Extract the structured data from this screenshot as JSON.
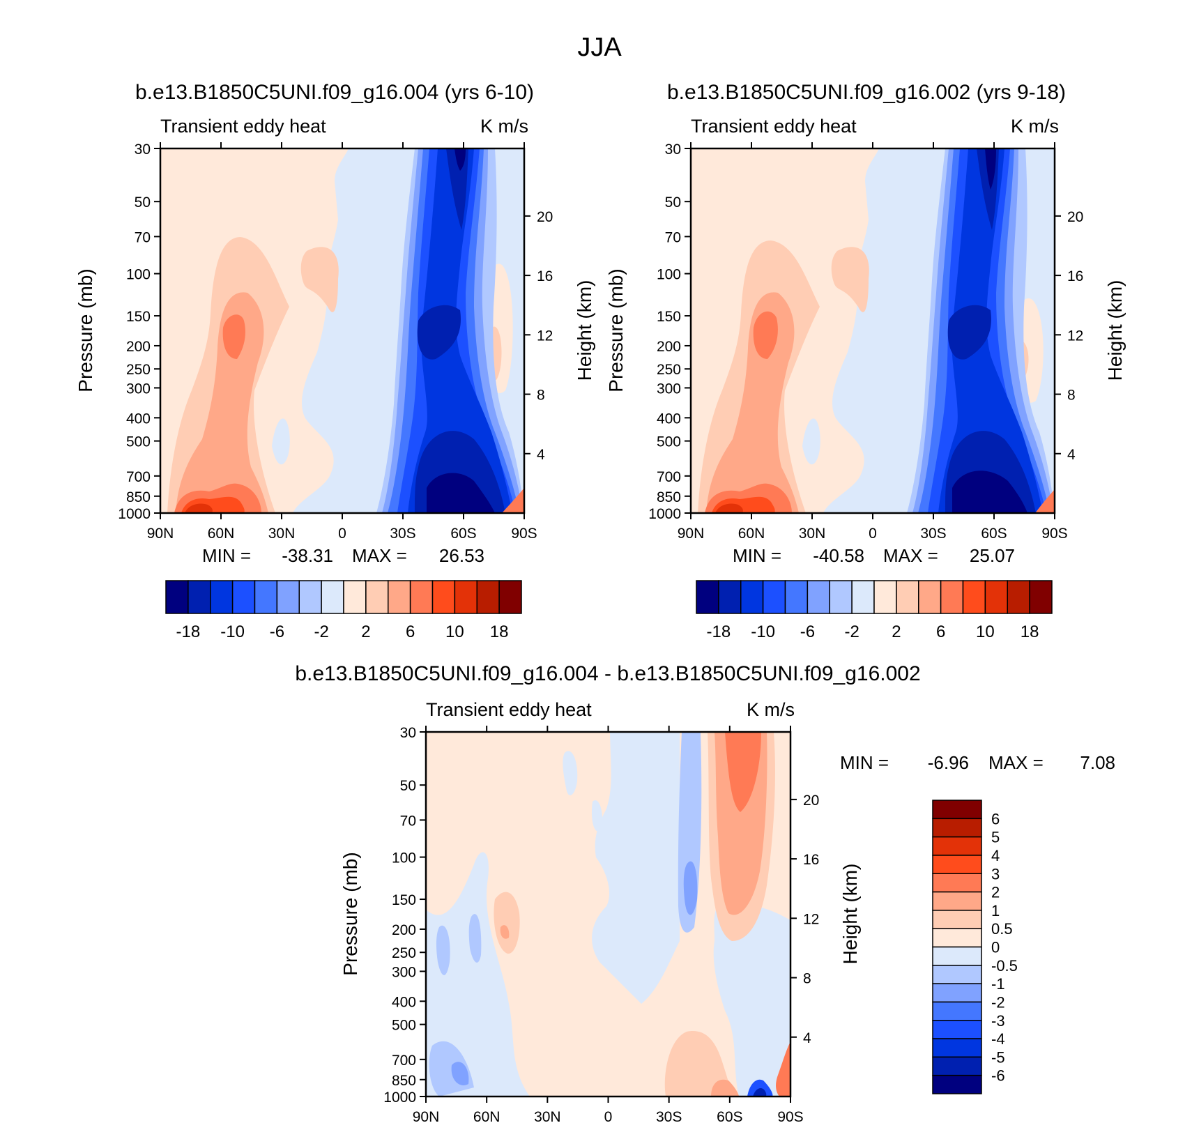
{
  "figure": {
    "season_title": "JJA"
  },
  "chart_data": [
    {
      "type": "heatmap",
      "title": "b.e13.B1850C5UNI.f09_g16.004 (yrs 6-10)",
      "subtitle_left": "Transient eddy heat",
      "subtitle_right": "K m/s",
      "ylabel": "Pressure (mb)",
      "ylabel_right": "Height (km)",
      "x_ticks": [
        "90N",
        "60N",
        "30N",
        "0",
        "30S",
        "60S",
        "90S"
      ],
      "y_ticks": [
        30,
        50,
        70,
        100,
        150,
        200,
        250,
        300,
        400,
        500,
        700,
        850,
        1000
      ],
      "y_right_ticks": [
        4,
        8,
        12,
        16,
        20
      ],
      "yscale": "log",
      "min_label": "MIN =",
      "min_value": "-38.31",
      "max_label": "MAX =",
      "max_value": "26.53",
      "colorbar_orientation": "horizontal",
      "colorbar_labels": [
        "-18",
        "-10",
        "-6",
        "-2",
        "2",
        "6",
        "10",
        "18"
      ],
      "colors": [
        "#00007f",
        "#0020b0",
        "#0036e0",
        "#1c50ff",
        "#4477ff",
        "#80a2ff",
        "#b0c8ff",
        "#dce9fb",
        "#ffe9da",
        "#ffcdb4",
        "#ffa888",
        "#ff7a55",
        "#ff4c1c",
        "#e33208",
        "#b81d00",
        "#800000"
      ]
    },
    {
      "type": "heatmap",
      "title": "b.e13.B1850C5UNI.f09_g16.002 (yrs 9-18)",
      "subtitle_left": "Transient eddy heat",
      "subtitle_right": "K m/s",
      "ylabel": "Pressure (mb)",
      "ylabel_right": "Height (km)",
      "x_ticks": [
        "90N",
        "60N",
        "30N",
        "0",
        "30S",
        "60S",
        "90S"
      ],
      "y_ticks": [
        30,
        50,
        70,
        100,
        150,
        200,
        250,
        300,
        400,
        500,
        700,
        850,
        1000
      ],
      "y_right_ticks": [
        4,
        8,
        12,
        16,
        20
      ],
      "yscale": "log",
      "min_label": "MIN =",
      "min_value": "-40.58",
      "max_label": "MAX =",
      "max_value": "25.07",
      "colorbar_orientation": "horizontal",
      "colorbar_labels": [
        "-18",
        "-10",
        "-6",
        "-2",
        "2",
        "6",
        "10",
        "18"
      ],
      "colors": [
        "#00007f",
        "#0020b0",
        "#0036e0",
        "#1c50ff",
        "#4477ff",
        "#80a2ff",
        "#b0c8ff",
        "#dce9fb",
        "#ffe9da",
        "#ffcdb4",
        "#ffa888",
        "#ff7a55",
        "#ff4c1c",
        "#e33208",
        "#b81d00",
        "#800000"
      ]
    },
    {
      "type": "heatmap",
      "title": "b.e13.B1850C5UNI.f09_g16.004 - b.e13.B1850C5UNI.f09_g16.002",
      "subtitle_left": "Transient eddy heat",
      "subtitle_right": "K m/s",
      "ylabel": "Pressure (mb)",
      "ylabel_right": "Height (km)",
      "x_ticks": [
        "90N",
        "60N",
        "30N",
        "0",
        "30S",
        "60S",
        "90S"
      ],
      "y_ticks": [
        30,
        50,
        70,
        100,
        150,
        200,
        250,
        300,
        400,
        500,
        700,
        850,
        1000
      ],
      "y_right_ticks": [
        4,
        8,
        12,
        16,
        20
      ],
      "yscale": "log",
      "min_label": "MIN =",
      "min_value": "-6.96",
      "max_label": "MAX =",
      "max_value": "7.08",
      "colorbar_orientation": "vertical",
      "colorbar_labels": [
        "6",
        "5",
        "4",
        "3",
        "2",
        "1",
        "0.5",
        "0",
        "-0.5",
        "-1",
        "-2",
        "-3",
        "-4",
        "-5",
        "-6"
      ],
      "colors": [
        "#800000",
        "#b81d00",
        "#e33208",
        "#ff4c1c",
        "#ff7a55",
        "#ffa888",
        "#ffcdb4",
        "#ffe9da",
        "#dce9fb",
        "#b0c8ff",
        "#80a2ff",
        "#4477ff",
        "#1c50ff",
        "#0036e0",
        "#0020b0",
        "#00007f"
      ]
    }
  ]
}
